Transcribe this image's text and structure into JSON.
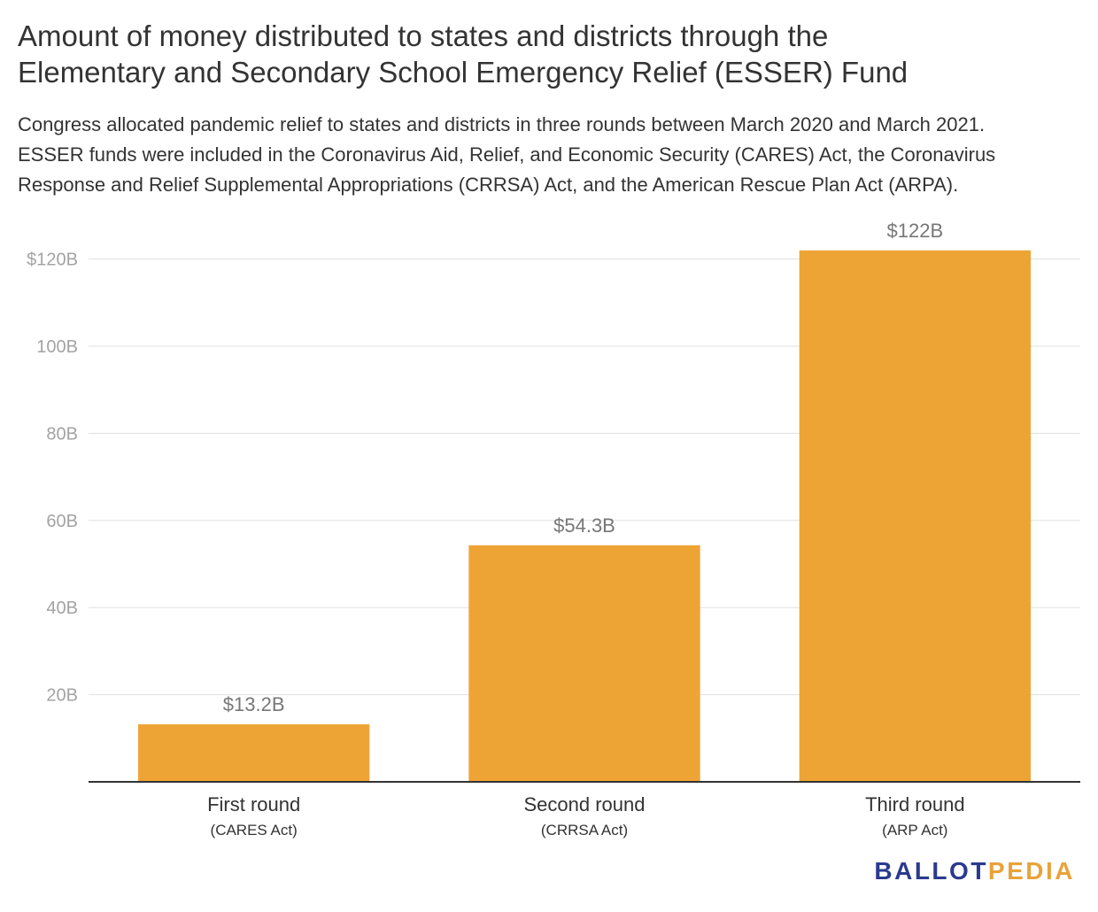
{
  "title_lines": [
    "Amount of money distributed to states and districts through the",
    "Elementary and Secondary School Emergency Relief (ESSER) Fund"
  ],
  "subtitle_lines": [
    "Congress allocated pandemic relief to states and districts in three rounds between March 2020 and March 2021.",
    "ESSER funds were included in the Coronavirus Aid, Relief, and Economic Security (CARES) Act, the Coronavirus",
    "Response and Relief Supplemental Appropriations (CRRSA) Act, and the American Rescue Plan Act (ARPA)."
  ],
  "logo": {
    "part1": "BALLOT",
    "part2": "PEDIA",
    "colors": {
      "part1": "#2b3a8f",
      "part2": "#e8a33a"
    }
  },
  "chart_data": {
    "type": "bar",
    "categories": [
      "First round",
      "Second round",
      "Third round"
    ],
    "category_sublabels": [
      "(CARES Act)",
      "(CRRSA Act)",
      "(ARP Act)"
    ],
    "values": [
      13.2,
      54.3,
      122
    ],
    "data_labels": [
      "$13.2B",
      "$54.3B",
      "$122B"
    ],
    "ylim": [
      0,
      125
    ],
    "yticks": [
      20,
      40,
      60,
      80,
      100,
      120
    ],
    "ytick_labels": [
      "20B",
      "40B",
      "60B",
      "80B",
      "100B",
      "$120B"
    ],
    "xlabel": "",
    "ylabel": "",
    "grid": true,
    "colors": {
      "bar": "#eea435",
      "grid": "#e1e1e1",
      "axis": "#333333",
      "tick_text": "#a3a3a3",
      "data_label_text": "#777777",
      "category_text": "#333333"
    }
  }
}
